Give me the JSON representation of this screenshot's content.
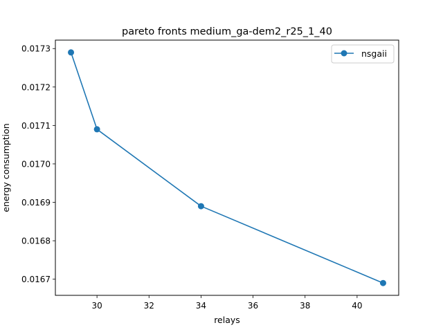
{
  "chart_data": {
    "type": "line",
    "title": "pareto fronts medium_ga-dem2_r25_1_40",
    "xlabel": "relays",
    "ylabel": "energy consumption",
    "xlim": [
      28.4,
      41.6
    ],
    "ylim": [
      0.016658,
      0.017322
    ],
    "xticks": [
      30,
      32,
      34,
      36,
      38,
      40
    ],
    "yticks": [
      0.0167,
      0.0168,
      0.0169,
      0.017,
      0.0171,
      0.0172,
      0.0173
    ],
    "ytick_decimals": 4,
    "grid": false,
    "legend_position": "top-right",
    "series": [
      {
        "name": "nsgaii",
        "color": "#1f77b4",
        "marker": "circle",
        "x": [
          29,
          30,
          34,
          41
        ],
        "y": [
          0.01729,
          0.01709,
          0.01689,
          0.01669
        ]
      }
    ]
  }
}
